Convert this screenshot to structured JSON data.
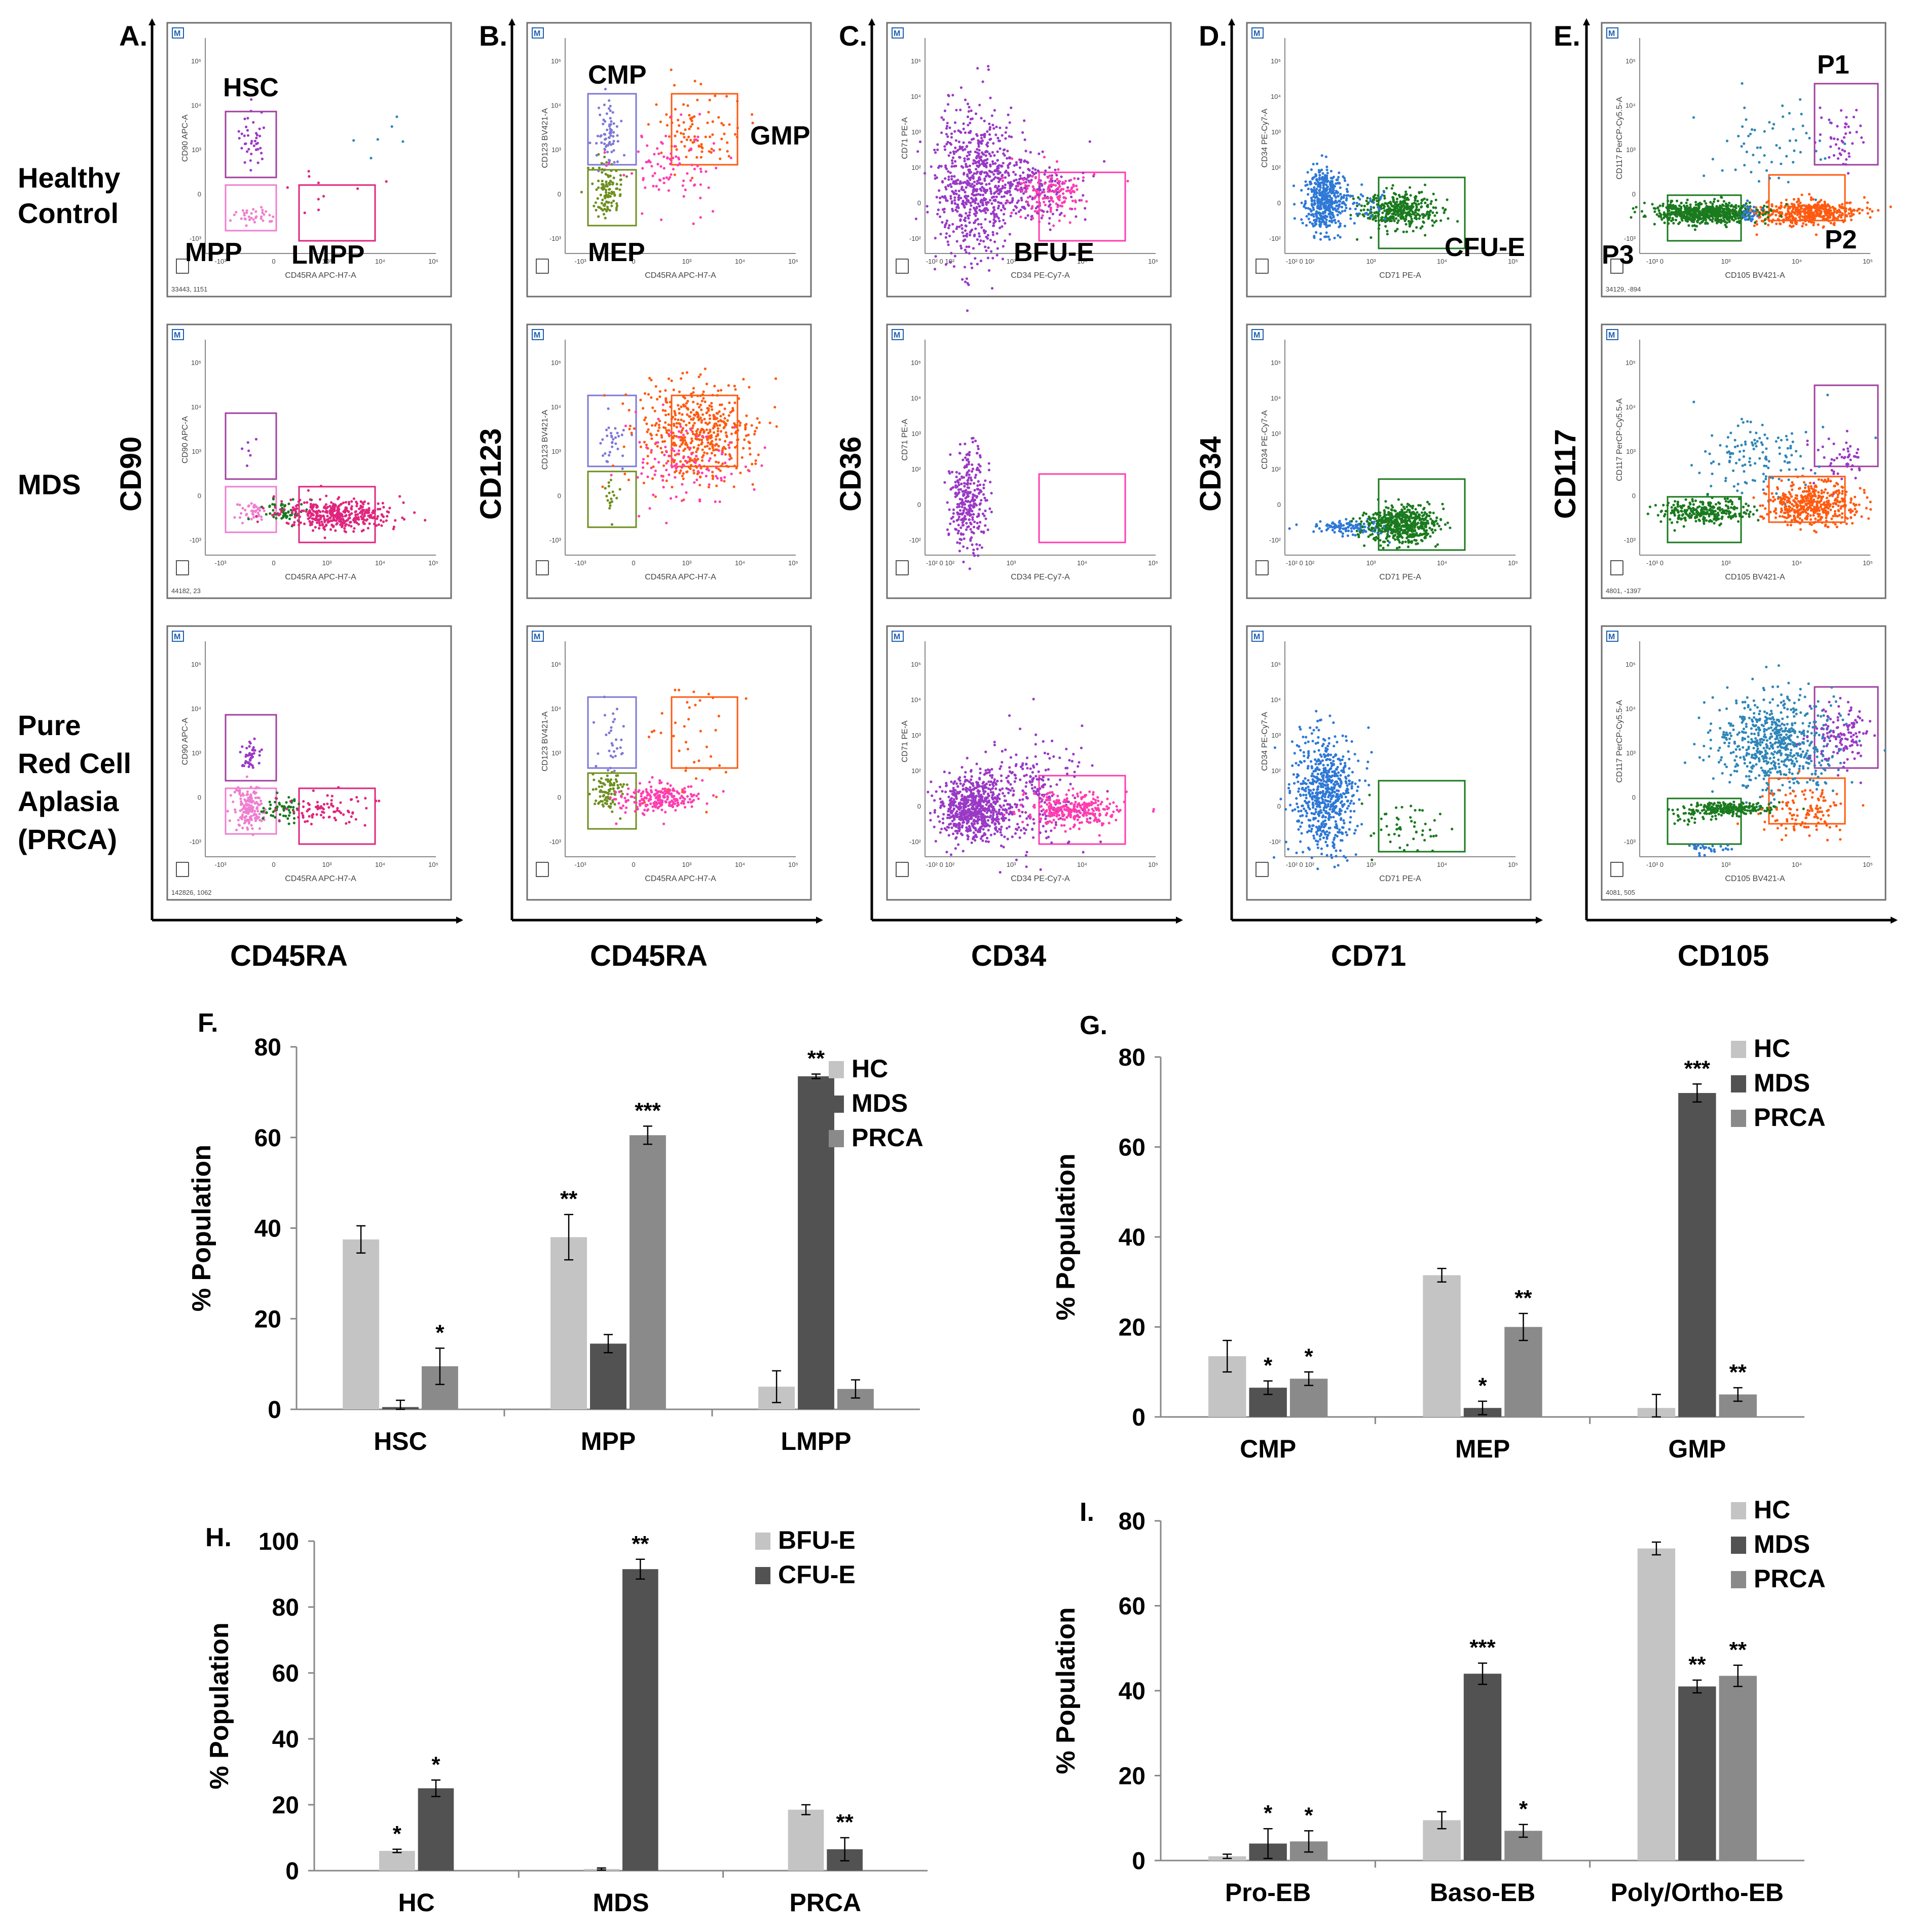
{
  "colors": {
    "HC": "#c4c4c4",
    "MDS": "#525252",
    "PRCA": "#8a8a8a",
    "violet": "#9a39c6",
    "purple_gate": "#a0409f",
    "pink": "#ef7fd0",
    "magenta": "#e0257e",
    "hotpink": "#ff3db0",
    "green": "#1a7a1e",
    "olive": "#6e8f1e",
    "lavender": "#7e79d6",
    "orange": "#ff5a10",
    "blue": "#2e78d6",
    "teal": "#2f86b8"
  },
  "row_labels": [
    "Healthy\nControl",
    "MDS",
    "Pure\nRed Cell\nAplasia\n(PRCA)"
  ],
  "flow_panels": [
    {
      "letter": "A.",
      "xaxis": "CD45RA",
      "yaxis": "CD90",
      "mini_x": "CD45RA APC-H7-A",
      "mini_y": "CD90 APC-A",
      "x_ticks": [
        "-10³",
        "0",
        "10³",
        "10⁴",
        "10⁵"
      ],
      "y_ticks": [
        "10⁵",
        "10⁴",
        "10³",
        "0",
        "-10³"
      ],
      "gate_labels": [
        "HSC",
        "MPP",
        "LMPP"
      ],
      "events": [
        "33443, 1151",
        "44182, 23",
        "142826, 1062"
      ]
    },
    {
      "letter": "B.",
      "xaxis": "CD45RA",
      "yaxis": "CD123",
      "mini_x": "CD45RA APC-H7-A",
      "mini_y": "CD123 BV421-A",
      "x_ticks": [
        "-10³",
        "0",
        "10³",
        "10⁴",
        "10⁵"
      ],
      "y_ticks": [
        "10⁵",
        "10⁴",
        "10³",
        "0",
        "-10³"
      ],
      "gate_labels": [
        "CMP",
        "GMP",
        "MEP"
      ],
      "events": [
        "",
        "",
        ""
      ]
    },
    {
      "letter": "C.",
      "xaxis": "CD34",
      "yaxis": "CD36",
      "mini_x": "CD34 PE-Cy7-A",
      "mini_y": "CD71 PE-A",
      "x_ticks": [
        "-10² 0 10²",
        "10³",
        "10⁴",
        "10⁵"
      ],
      "y_ticks": [
        "10⁵",
        "10⁴",
        "10³",
        "10²",
        "0",
        "-10²"
      ],
      "gate_labels": [
        "BFU-E"
      ],
      "events": [
        "",
        "",
        ""
      ]
    },
    {
      "letter": "D.",
      "xaxis": "CD71",
      "yaxis": "CD34",
      "mini_x": "CD71 PE-A",
      "mini_y": "CD34 PE-Cy7-A",
      "x_ticks": [
        "-10² 0 10²",
        "10³",
        "10⁴",
        "10⁵"
      ],
      "y_ticks": [
        "10⁵",
        "10⁴",
        "10³",
        "10²",
        "0",
        "-10²"
      ],
      "gate_labels": [
        "CFU-E"
      ],
      "events": [
        "",
        "",
        ""
      ]
    },
    {
      "letter": "E.",
      "xaxis": "CD105",
      "yaxis": "CD117",
      "mini_x": "CD105 BV421-A",
      "mini_y": "CD117 PerCP-Cy5.5-A",
      "x_ticks": [
        "-10³ 0",
        "10³",
        "10⁴",
        "10⁵"
      ],
      "y_ticks": [
        "10⁵",
        "10⁴",
        "10³",
        "0",
        "-10³"
      ],
      "gate_labels": [
        "P1",
        "P2",
        "P3"
      ],
      "events": [
        "34129, -894",
        "4801, -1397",
        "4081, 505"
      ]
    }
  ],
  "bar_charts": [
    {
      "letter": "F.",
      "ylabel": "% Population",
      "ylim": [
        0,
        80
      ],
      "yticks": [
        0,
        20,
        40,
        60,
        80
      ],
      "categories": [
        "HSC",
        "MPP",
        "LMPP"
      ],
      "series": [
        {
          "name": "HC",
          "values": [
            37.5,
            38,
            5
          ],
          "errors": [
            3,
            5,
            3.5
          ]
        },
        {
          "name": "MDS",
          "values": [
            0.5,
            14.5,
            73.5
          ],
          "errors": [
            1.5,
            2,
            0.5
          ]
        },
        {
          "name": "PRCA",
          "values": [
            9.5,
            60.5,
            4.5
          ],
          "errors": [
            4,
            2,
            2
          ]
        }
      ],
      "significance": [
        [
          "",
          "**",
          ""
        ],
        [
          "",
          "",
          "**"
        ],
        [
          "*",
          "***",
          ""
        ]
      ],
      "legend": [
        "HC",
        "MDS",
        "PRCA"
      ]
    },
    {
      "letter": "G.",
      "ylabel": "% Population",
      "ylim": [
        0,
        80
      ],
      "yticks": [
        0,
        20,
        40,
        60,
        80
      ],
      "categories": [
        "CMP",
        "MEP",
        "GMP"
      ],
      "series": [
        {
          "name": "HC",
          "values": [
            13.5,
            31.5,
            2
          ],
          "errors": [
            3.5,
            1.5,
            3
          ]
        },
        {
          "name": "MDS",
          "values": [
            6.5,
            2,
            72
          ],
          "errors": [
            1.5,
            1.5,
            2
          ]
        },
        {
          "name": "PRCA",
          "values": [
            8.5,
            20,
            5
          ],
          "errors": [
            1.5,
            3,
            1.5
          ]
        }
      ],
      "significance": [
        [
          "",
          "",
          ""
        ],
        [
          "*",
          "*",
          "***"
        ],
        [
          "*",
          "**",
          "**"
        ]
      ],
      "legend": [
        "HC",
        "MDS",
        "PRCA"
      ]
    },
    {
      "letter": "H.",
      "ylabel": "% Population",
      "ylim": [
        0,
        100
      ],
      "yticks": [
        0,
        20,
        40,
        60,
        80,
        100
      ],
      "categories": [
        "HC",
        "MDS",
        "PRCA"
      ],
      "series": [
        {
          "name": "BFU-E",
          "values": [
            6,
            0.5,
            18.5
          ],
          "errors": [
            0.5,
            0.3,
            1.5
          ]
        },
        {
          "name": "CFU-E",
          "values": [
            25,
            91.5,
            6.5
          ],
          "errors": [
            2.5,
            3,
            3.5
          ]
        }
      ],
      "significance": [
        [
          "*",
          "",
          ""
        ],
        [
          "*",
          "**",
          "**"
        ]
      ],
      "legend": [
        "BFU-E",
        "CFU-E"
      ]
    },
    {
      "letter": "I.",
      "ylabel": "% Population",
      "ylim": [
        0,
        80
      ],
      "yticks": [
        0,
        20,
        40,
        60,
        80
      ],
      "categories": [
        "Pro-EB",
        "Baso-EB",
        "Poly/Ortho-EB"
      ],
      "series": [
        {
          "name": "HC",
          "values": [
            1,
            9.5,
            73.5
          ],
          "errors": [
            0.5,
            2,
            1.5
          ]
        },
        {
          "name": "MDS",
          "values": [
            4,
            44,
            41
          ],
          "errors": [
            3.5,
            2.5,
            1.5
          ]
        },
        {
          "name": "PRCA",
          "values": [
            4.5,
            7,
            43.5
          ],
          "errors": [
            2.5,
            1.5,
            2.5
          ]
        }
      ],
      "significance": [
        [
          "",
          "",
          ""
        ],
        [
          "*",
          "***",
          "**"
        ],
        [
          "*",
          "*",
          "**"
        ]
      ],
      "legend": [
        "HC",
        "MDS",
        "PRCA"
      ]
    }
  ],
  "chart_data": [
    {
      "type": "bar",
      "title": "F.",
      "categories": [
        "HSC",
        "MPP",
        "LMPP"
      ],
      "series": [
        {
          "name": "HC",
          "values": [
            37.5,
            38,
            5
          ]
        },
        {
          "name": "MDS",
          "values": [
            0.5,
            14.5,
            73.5
          ]
        },
        {
          "name": "PRCA",
          "values": [
            9.5,
            60.5,
            4.5
          ]
        }
      ],
      "xlabel": "",
      "ylabel": "% Population",
      "ylim": [
        0,
        80
      ]
    },
    {
      "type": "bar",
      "title": "G.",
      "categories": [
        "CMP",
        "MEP",
        "GMP"
      ],
      "series": [
        {
          "name": "HC",
          "values": [
            13.5,
            31.5,
            2
          ]
        },
        {
          "name": "MDS",
          "values": [
            6.5,
            2,
            72
          ]
        },
        {
          "name": "PRCA",
          "values": [
            8.5,
            20,
            5
          ]
        }
      ],
      "xlabel": "",
      "ylabel": "% Population",
      "ylim": [
        0,
        80
      ]
    },
    {
      "type": "bar",
      "title": "H.",
      "categories": [
        "HC",
        "MDS",
        "PRCA"
      ],
      "series": [
        {
          "name": "BFU-E",
          "values": [
            6,
            0.5,
            18.5
          ]
        },
        {
          "name": "CFU-E",
          "values": [
            25,
            91.5,
            6.5
          ]
        }
      ],
      "xlabel": "",
      "ylabel": "% Population",
      "ylim": [
        0,
        100
      ]
    },
    {
      "type": "bar",
      "title": "I.",
      "categories": [
        "Pro-EB",
        "Baso-EB",
        "Poly/Ortho-EB"
      ],
      "series": [
        {
          "name": "HC",
          "values": [
            1,
            9.5,
            73.5
          ]
        },
        {
          "name": "MDS",
          "values": [
            4,
            44,
            41
          ]
        },
        {
          "name": "PRCA",
          "values": [
            4.5,
            7,
            43.5
          ]
        }
      ],
      "xlabel": "",
      "ylabel": "% Population",
      "ylim": [
        0,
        80
      ]
    }
  ]
}
